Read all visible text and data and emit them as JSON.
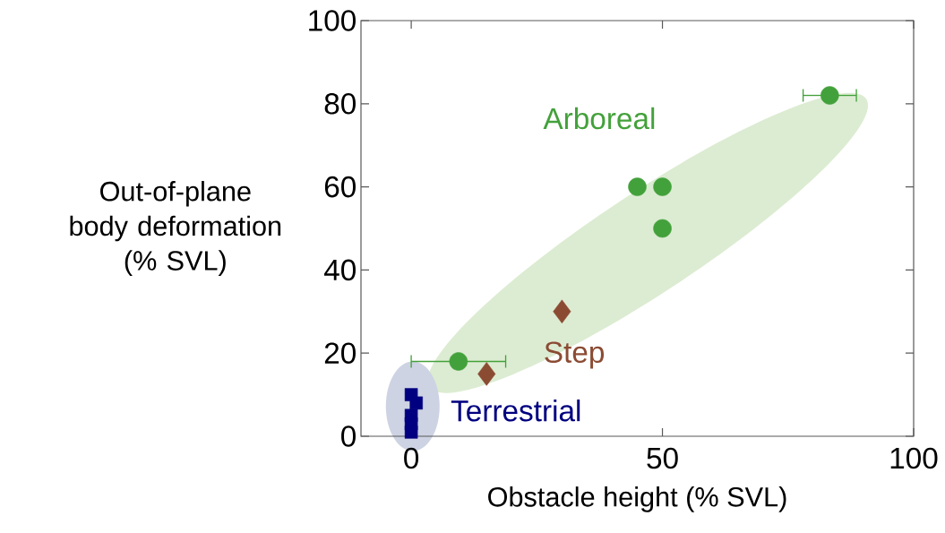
{
  "chart_data": {
    "type": "scatter",
    "xlabel": "Obstacle height (% SVL)",
    "ylabel": "Out-of-plane body deformation (% SVL)",
    "xlim": [
      -10,
      100
    ],
    "xticks": [
      0,
      50,
      100
    ],
    "ylim": [
      0,
      100
    ],
    "yticks": [
      0,
      20,
      40,
      60,
      80,
      100
    ],
    "grid": false,
    "series": [
      {
        "name": "Arboreal",
        "color": "#43a13b",
        "marker": "circle",
        "x": [
          9.4,
          45,
          50,
          50,
          83.3
        ],
        "values": [
          18,
          60,
          60,
          50,
          82
        ],
        "xerrors": [
          9.4,
          null,
          null,
          null,
          5.3
        ]
      },
      {
        "name": "Step",
        "color": "#8b4b33",
        "marker": "diamond",
        "x": [
          15,
          30
        ],
        "values": [
          15,
          30
        ]
      },
      {
        "name": "Terrestrial",
        "color": "#000080",
        "marker": "square",
        "x": [
          0,
          1,
          0,
          0,
          0
        ],
        "values": [
          10,
          8,
          5,
          3,
          1
        ]
      }
    ]
  }
}
